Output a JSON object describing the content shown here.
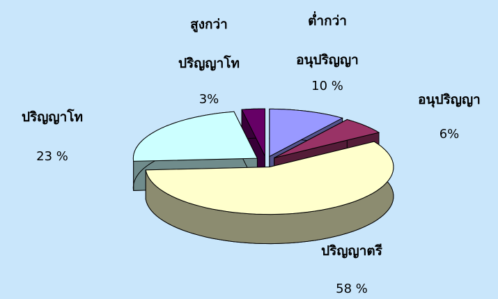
{
  "chart_data": {
    "type": "pie3d",
    "categories": [
      "ต่ำกว่า\nอนุปริญญา",
      "อนุปริญญา",
      "ปริญญาตรี",
      "ปริญญาโท",
      "สูงกว่า\nปริญญาโท"
    ],
    "values": [
      10,
      6,
      58,
      23,
      3
    ],
    "value_labels": [
      "10 %",
      "6%",
      "58 %",
      "23 %",
      "3%"
    ],
    "colors": [
      "#9999ff",
      "#993366",
      "#ffffcc",
      "#ccffff",
      "#660066"
    ]
  }
}
